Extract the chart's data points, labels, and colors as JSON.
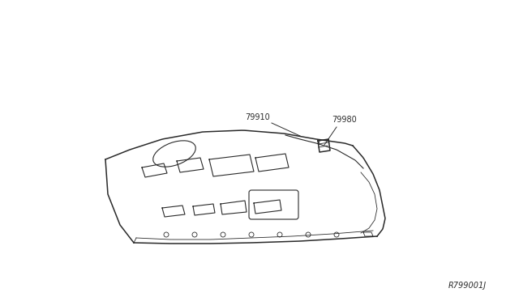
{
  "bg_color": "#ffffff",
  "line_color": "#2a2a2a",
  "diagram_id": "R799001J",
  "label_79910": "79910",
  "label_79980": "79980",
  "lw_main": 1.1,
  "lw_detail": 0.8,
  "lw_thin": 0.6
}
